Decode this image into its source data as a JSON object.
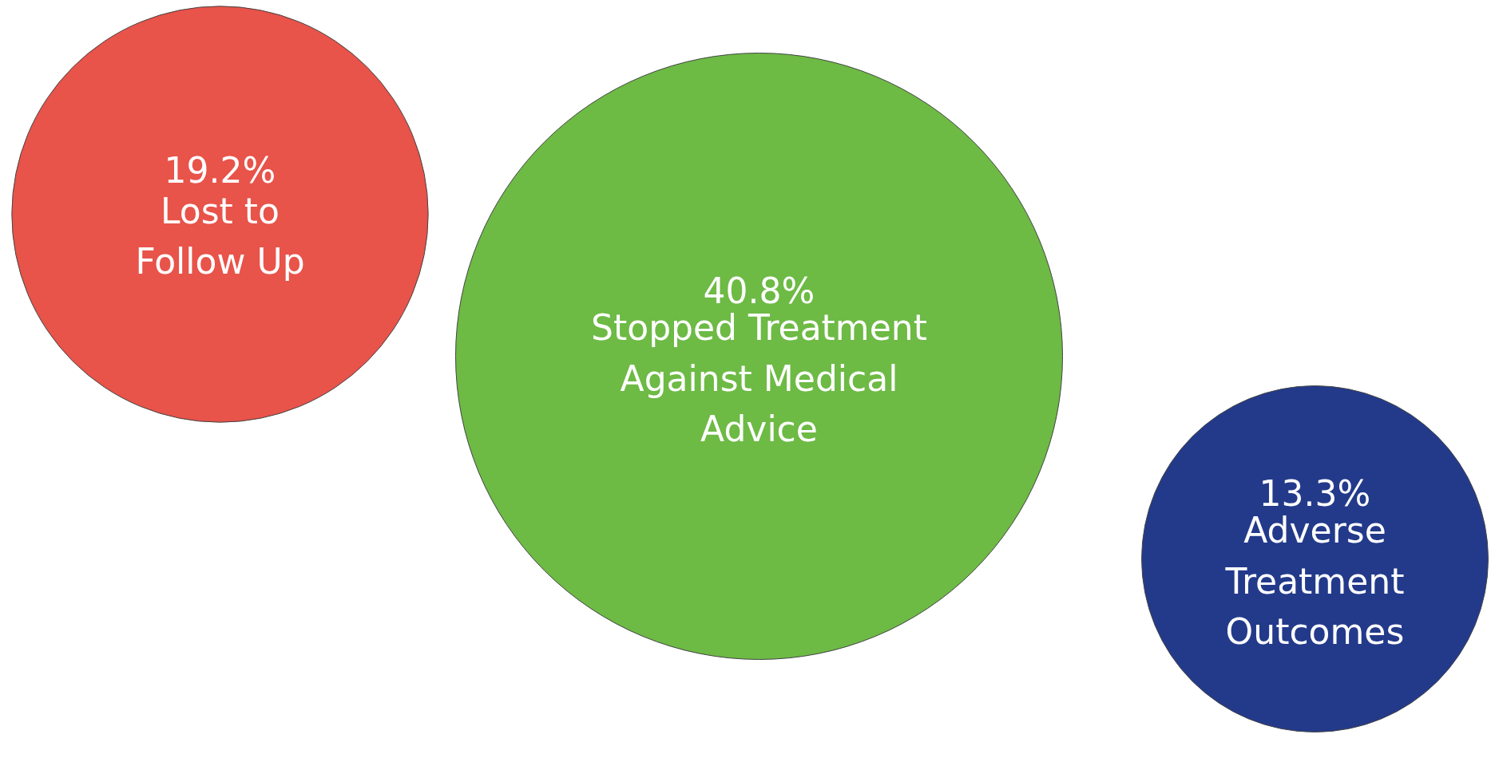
{
  "chart_data": {
    "type": "other",
    "categories": [
      "Lost to Follow Up",
      "Stopped Treatment Against Medical Advice",
      "Adverse Treatment Outcomes"
    ],
    "values": [
      19.2,
      40.8,
      13.3
    ],
    "value_labels": [
      "19.2%",
      "40.8%",
      "13.3%"
    ],
    "colors": [
      "#e8534a",
      "#6dba45",
      "#233a8b"
    ]
  }
}
